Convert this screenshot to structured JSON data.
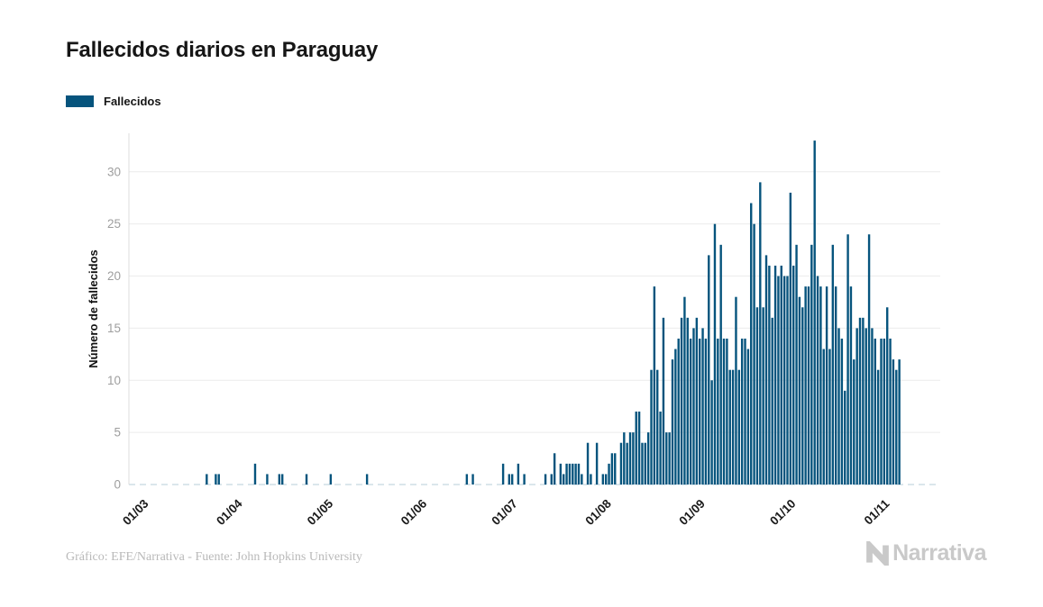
{
  "title": "Fallecidos diarios en Paraguay",
  "legend": {
    "label": "Fallecidos",
    "color": "#06547D"
  },
  "footer": {
    "credit": "Gráfico: EFE/Narrativa - Fuente: John Hopkins University"
  },
  "logo": {
    "text": "Narrativa",
    "color": "#c9c9c9"
  },
  "colors": {
    "bar": "#06547D",
    "gridline": "#ececec",
    "axis_line": "#dcdcdc",
    "baseline_dashed": "#cfdde6",
    "y_tick_text": "#9e9e9e",
    "x_tick_text": "#1b1b1b"
  },
  "chart_data": {
    "type": "bar",
    "title": "Fallecidos diarios en Paraguay",
    "xlabel": "",
    "ylabel": "Número de fallecidos",
    "ylim": [
      0,
      34
    ],
    "yticks": [
      0,
      5,
      10,
      15,
      20,
      25,
      30
    ],
    "grid": true,
    "legend_position": "top-left",
    "x_start_date": "2020-03-01",
    "x_tick_labels": [
      "01/03",
      "01/04",
      "01/05",
      "01/06",
      "01/07",
      "01/08",
      "01/09",
      "01/10",
      "01/11"
    ],
    "x_tick_days": [
      0,
      31,
      61,
      92,
      122,
      153,
      184,
      214,
      245
    ],
    "series": [
      {
        "name": "Fallecidos",
        "color": "#06547D",
        "values": [
          0,
          0,
          0,
          0,
          0,
          0,
          0,
          0,
          0,
          0,
          0,
          0,
          0,
          0,
          0,
          0,
          0,
          0,
          0,
          0,
          0,
          0,
          1,
          0,
          0,
          1,
          1,
          0,
          0,
          0,
          0,
          0,
          0,
          0,
          0,
          0,
          0,
          0,
          2,
          0,
          0,
          0,
          1,
          0,
          0,
          0,
          1,
          1,
          0,
          0,
          0,
          0,
          0,
          0,
          0,
          1,
          0,
          0,
          0,
          0,
          0,
          0,
          0,
          1,
          0,
          0,
          0,
          0,
          0,
          0,
          0,
          0,
          0,
          0,
          0,
          1,
          0,
          0,
          0,
          0,
          0,
          0,
          0,
          0,
          0,
          0,
          0,
          0,
          0,
          0,
          0,
          0,
          0,
          0,
          0,
          0,
          0,
          0,
          0,
          0,
          0,
          0,
          0,
          0,
          0,
          0,
          0,
          0,
          1,
          0,
          1,
          0,
          0,
          0,
          0,
          0,
          0,
          0,
          0,
          0,
          2,
          0,
          1,
          1,
          0,
          2,
          0,
          1,
          0,
          0,
          0,
          0,
          0,
          0,
          1,
          0,
          1,
          3,
          0,
          2,
          1,
          2,
          2,
          2,
          2,
          2,
          1,
          0,
          4,
          1,
          0,
          4,
          0,
          1,
          1,
          2,
          3,
          3,
          0,
          4,
          5,
          4,
          5,
          5,
          7,
          7,
          4,
          4,
          5,
          11,
          19,
          11,
          7,
          16,
          5,
          5,
          12,
          13,
          14,
          16,
          18,
          16,
          14,
          15,
          16,
          14,
          15,
          14,
          22,
          10,
          25,
          14,
          23,
          14,
          14,
          11,
          11,
          18,
          11,
          14,
          14,
          13,
          27,
          25,
          17,
          29,
          17,
          22,
          21,
          16,
          21,
          20,
          21,
          20,
          20,
          28,
          21,
          23,
          18,
          17,
          19,
          19,
          23,
          33,
          20,
          19,
          13,
          19,
          13,
          23,
          19,
          15,
          14,
          9,
          24,
          19,
          12,
          15,
          16,
          16,
          15,
          24,
          15,
          14,
          11,
          14,
          14,
          17,
          14,
          12,
          11,
          12
        ]
      }
    ]
  }
}
